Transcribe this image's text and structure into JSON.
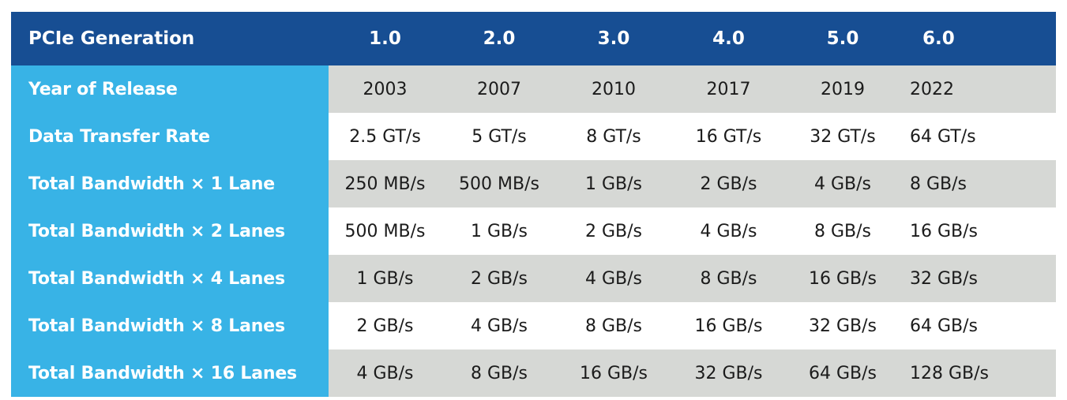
{
  "chart_data": {
    "type": "table",
    "header": {
      "label": "PCIe Generation",
      "columns": [
        "1.0",
        "2.0",
        "3.0",
        "4.0",
        "5.0",
        "6.0"
      ]
    },
    "rows": [
      {
        "label": "Year of Release",
        "values": [
          "2003",
          "2007",
          "2010",
          "2017",
          "2019",
          "2022"
        ]
      },
      {
        "label": "Data Transfer Rate",
        "values": [
          "2.5 GT/s",
          "5 GT/s",
          "8 GT/s",
          "16 GT/s",
          "32 GT/s",
          "64 GT/s"
        ]
      },
      {
        "label": "Total Bandwidth × 1 Lane",
        "values": [
          "250 MB/s",
          "500 MB/s",
          "1 GB/s",
          "2 GB/s",
          "4 GB/s",
          "8 GB/s"
        ]
      },
      {
        "label": "Total Bandwidth × 2 Lanes",
        "values": [
          "500 MB/s",
          "1 GB/s",
          "2 GB/s",
          "4 GB/s",
          "8 GB/s",
          "16 GB/s"
        ]
      },
      {
        "label": "Total Bandwidth × 4 Lanes",
        "values": [
          "1 GB/s",
          "2 GB/s",
          "4 GB/s",
          "8 GB/s",
          "16 GB/s",
          "32 GB/s"
        ]
      },
      {
        "label": "Total Bandwidth × 8 Lanes",
        "values": [
          "2 GB/s",
          "4 GB/s",
          "8 GB/s",
          "16 GB/s",
          "32 GB/s",
          "64 GB/s"
        ]
      },
      {
        "label": "Total Bandwidth × 16 Lanes",
        "values": [
          "4 GB/s",
          "8 GB/s",
          "16 GB/s",
          "32 GB/s",
          "64 GB/s",
          "128 GB/s"
        ]
      }
    ],
    "colors": {
      "header_background": "#174e93",
      "row_label_background": "#38b3e6",
      "shaded_row_background": "#d6d8d5",
      "plain_row_background": "#ffffff",
      "header_text": "#ffffff",
      "cell_text": "#1b1b1b"
    }
  }
}
